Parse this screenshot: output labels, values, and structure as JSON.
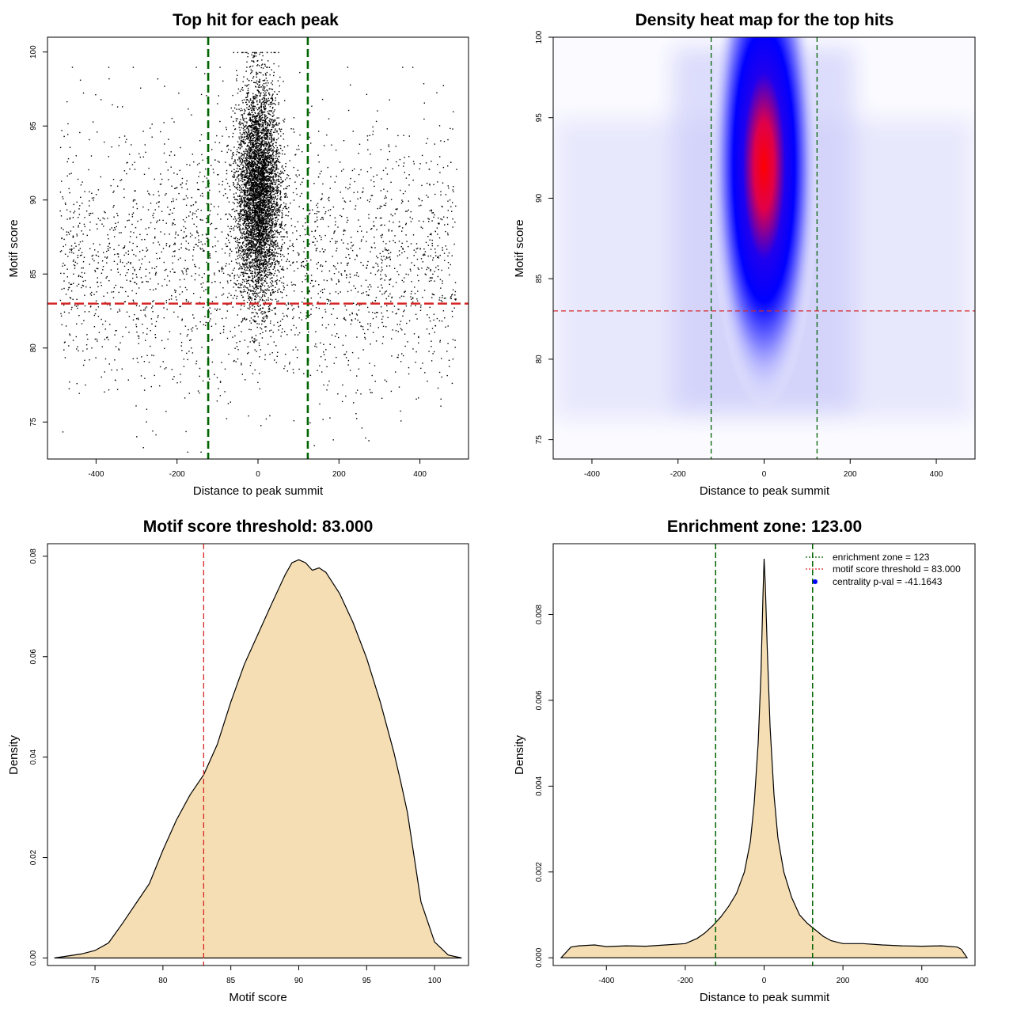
{
  "chart_data": [
    {
      "type": "scatter",
      "title": "Top hit for each peak",
      "xlabel": "Distance to peak summit",
      "ylabel": "Motif score",
      "xlim": [
        -520,
        520
      ],
      "ylim": [
        72.5,
        101
      ],
      "xticks": [
        -400,
        -200,
        0,
        200,
        400
      ],
      "yticks": [
        75,
        80,
        85,
        90,
        95,
        100
      ],
      "xtick_labels": [
        "-400",
        "-200",
        "0",
        "200",
        "400"
      ],
      "ytick_labels": [
        "75",
        "80",
        "85",
        "90",
        "95",
        "100"
      ],
      "vlines": [
        -123,
        123
      ],
      "hline": 83,
      "vline_color": "#006400",
      "hline_color": "#d62728",
      "points": {
        "background": {
          "n": 2600,
          "x_range": [
            -490,
            490
          ],
          "y_mean": 86,
          "y_sd": 4.5,
          "y_range": [
            73,
            99
          ]
        },
        "central": {
          "n": 5200,
          "x_sd": 26,
          "y_mean": 90.5,
          "y_sd": 3.6,
          "y_range": [
            76,
            100
          ]
        }
      }
    },
    {
      "type": "heatmap",
      "title": "Density heat map for the top hits",
      "xlabel": "Distance to peak summit",
      "ylabel": "Motif score",
      "xlim": [
        -490,
        490
      ],
      "ylim": [
        73.8,
        100
      ],
      "xticks": [
        -400,
        -200,
        0,
        200,
        400
      ],
      "yticks": [
        75,
        80,
        85,
        90,
        95,
        100
      ],
      "xtick_labels": [
        "-400",
        "-200",
        "0",
        "200",
        "400"
      ],
      "ytick_labels": [
        "75",
        "80",
        "85",
        "90",
        "95",
        "100"
      ],
      "vlines": [
        -123,
        123
      ],
      "hline": 83,
      "hotspot": {
        "x": 0,
        "y": 91.5
      },
      "colors": [
        "#ffffff",
        "#0000ff",
        "#ff0000"
      ]
    },
    {
      "type": "area",
      "title": "Motif score threshold: 83.000",
      "xlabel": "Motif score",
      "ylabel": "Density",
      "xlim": [
        71.5,
        102.5
      ],
      "ylim": [
        -0.0015,
        0.0825
      ],
      "xticks": [
        75,
        80,
        85,
        90,
        95,
        100
      ],
      "yticks": [
        0,
        0.02,
        0.04,
        0.06,
        0.08
      ],
      "xtick_labels": [
        "75",
        "80",
        "85",
        "90",
        "95",
        "100"
      ],
      "ytick_labels": [
        "0.00",
        "0.02",
        "0.04",
        "0.06",
        "0.08"
      ],
      "vlines": [
        83
      ],
      "fill_color": "#f5deb3",
      "x": [
        72,
        74,
        75,
        76,
        77,
        78,
        79,
        80,
        81,
        82,
        83,
        84,
        85,
        86,
        87,
        88,
        89,
        89.5,
        90,
        90.5,
        91,
        91.5,
        92,
        93,
        94,
        95,
        96,
        97,
        97.5,
        98,
        99,
        100,
        101,
        102
      ],
      "y": [
        0,
        0.0008,
        0.0015,
        0.003,
        0.0068,
        0.0108,
        0.0148,
        0.0215,
        0.0275,
        0.0325,
        0.0365,
        0.0425,
        0.051,
        0.0585,
        0.0645,
        0.0705,
        0.0763,
        0.0787,
        0.0793,
        0.0787,
        0.0772,
        0.0777,
        0.0768,
        0.0726,
        0.0668,
        0.0597,
        0.051,
        0.041,
        0.0352,
        0.029,
        0.0112,
        0.0032,
        0.0006,
        0
      ]
    },
    {
      "type": "area",
      "title": "Enrichment zone: 123.00",
      "xlabel": "Distance to peak summit",
      "ylabel": "Density",
      "xlim": [
        -535,
        535
      ],
      "ylim": [
        -0.00018,
        0.00965
      ],
      "xticks": [
        -400,
        -200,
        0,
        200,
        400
      ],
      "yticks": [
        0,
        0.002,
        0.004,
        0.006,
        0.008
      ],
      "xtick_labels": [
        "-400",
        "-200",
        "0",
        "200",
        "400"
      ],
      "ytick_labels": [
        "0.000",
        "0.002",
        "0.004",
        "0.006",
        "0.008"
      ],
      "vlines": [
        -123,
        123
      ],
      "fill_color": "#f5deb3",
      "x": [
        -515,
        -490,
        -470,
        -430,
        -400,
        -350,
        -300,
        -250,
        -200,
        -170,
        -150,
        -130,
        -110,
        -90,
        -70,
        -50,
        -35,
        -25,
        -15,
        -8,
        -3,
        0,
        3,
        8,
        15,
        25,
        35,
        50,
        70,
        90,
        110,
        130,
        150,
        170,
        200,
        250,
        300,
        350,
        400,
        450,
        490,
        500,
        515
      ],
      "y": [
        0,
        0.00025,
        0.00028,
        0.0003,
        0.00026,
        0.00028,
        0.00027,
        0.0003,
        0.00033,
        0.00045,
        0.00058,
        0.00075,
        0.00095,
        0.0012,
        0.0015,
        0.002,
        0.0027,
        0.0036,
        0.005,
        0.0066,
        0.0084,
        0.0093,
        0.0087,
        0.0072,
        0.0054,
        0.0038,
        0.0028,
        0.002,
        0.0014,
        0.001,
        0.0008,
        0.00065,
        0.0005,
        0.0004,
        0.00033,
        0.00033,
        0.0003,
        0.00028,
        0.00027,
        0.00028,
        0.00025,
        0.0002,
        0
      ],
      "legend": [
        {
          "label": "enrichment zone = 123",
          "color": "#006400",
          "style": "dotted-line"
        },
        {
          "label": "motif score threshold = 83.000",
          "color": "#d62728",
          "style": "dotted-line"
        },
        {
          "label": "centrality p-val = -41.1643",
          "color": "#0000ff",
          "style": "point"
        }
      ],
      "legend_position": "top-right"
    }
  ]
}
